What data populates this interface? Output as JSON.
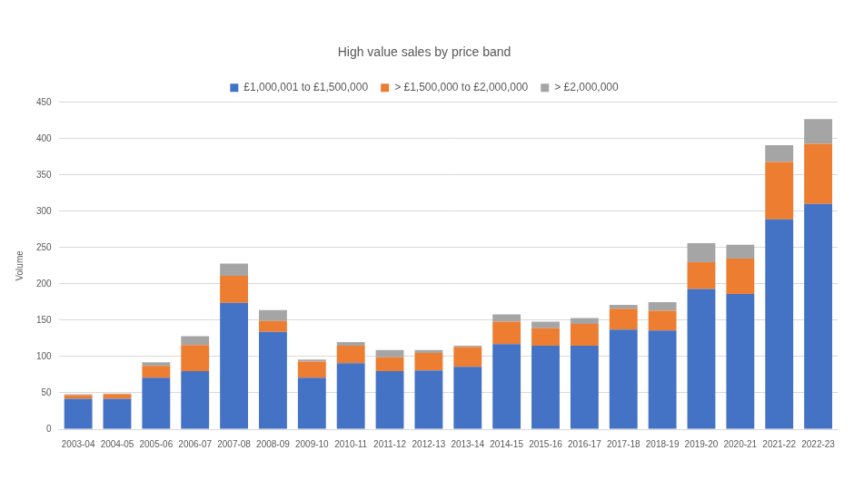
{
  "chart_data": {
    "type": "bar",
    "title": "High value sales by price band",
    "y_label": "Volume",
    "categories": [
      "2003-04",
      "2004-05",
      "2005-06",
      "2006-07",
      "2007-08",
      "2008-09",
      "2009-10",
      "2010-11",
      "2011-12",
      "2012-13",
      "2013-14",
      "2014-15",
      "2015-16",
      "2016-17",
      "2017-18",
      "2018-19",
      "2019-20",
      "2020-21",
      "2021-22",
      "2022-23"
    ],
    "series": [
      {
        "name": "£1,000,001 to £1,500,000",
        "color": "#4472c4",
        "values": [
          42,
          42,
          71,
          80,
          174,
          134,
          71,
          91,
          80,
          81,
          86,
          117,
          115,
          115,
          137,
          136,
          193,
          186,
          289,
          310
        ]
      },
      {
        "name": "> £1,500,000 to £2,000,000",
        "color": "#ed7d31",
        "values": [
          5,
          6,
          16,
          36,
          37,
          15,
          22,
          24,
          19,
          24,
          27,
          31,
          24,
          30,
          29,
          27,
          37,
          49,
          79,
          83
        ]
      },
      {
        "name": "> £2,000,000",
        "color": "#a5a5a5",
        "values": [
          1,
          1,
          5,
          12,
          17,
          15,
          3,
          5,
          10,
          4,
          2,
          10,
          9,
          8,
          5,
          12,
          26,
          19,
          23,
          34
        ]
      }
    ],
    "ylim": [
      0,
      450
    ],
    "yticks": [
      0,
      50,
      100,
      150,
      200,
      250,
      300,
      350,
      400,
      450
    ],
    "stacked": true,
    "grid": true,
    "legend": "top"
  }
}
